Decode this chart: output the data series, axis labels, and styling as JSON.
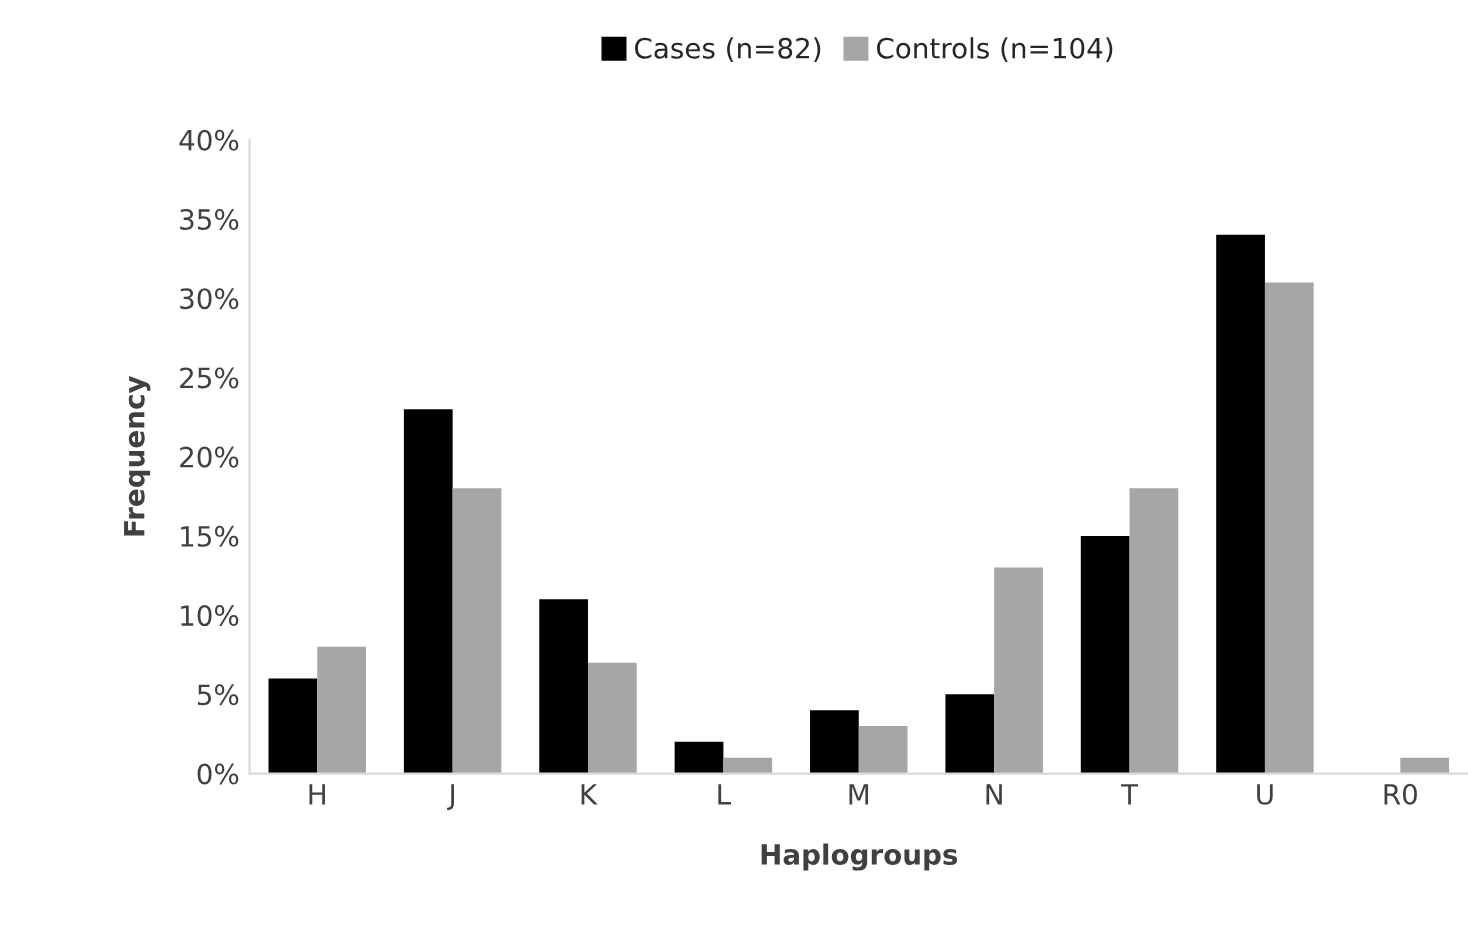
{
  "chart_data": {
    "type": "bar",
    "xlabel": "Haplogroups",
    "ylabel": "Frequency",
    "categories": [
      "H",
      "J",
      "K",
      "L",
      "M",
      "N",
      "T",
      "U",
      "R0"
    ],
    "series": [
      {
        "name": "Cases (n=82)",
        "color": "#000000",
        "values": [
          6,
          23,
          11,
          2,
          4,
          5,
          15,
          34,
          0
        ]
      },
      {
        "name": "Controls (n=104)",
        "color": "#a6a6a6",
        "values": [
          8,
          18,
          7,
          1,
          3,
          13,
          18,
          31,
          1
        ]
      }
    ],
    "ylim": [
      0,
      40
    ],
    "yticks": [
      {
        "value": 0,
        "label": "0%"
      },
      {
        "value": 5,
        "label": "5%"
      },
      {
        "value": 10,
        "label": "10%"
      },
      {
        "value": 15,
        "label": "15%"
      },
      {
        "value": 20,
        "label": "20%"
      },
      {
        "value": 25,
        "label": "25%"
      },
      {
        "value": 30,
        "label": "30%"
      },
      {
        "value": 35,
        "label": "35%"
      },
      {
        "value": 40,
        "label": "40%"
      }
    ],
    "grid": false,
    "legend": "top"
  }
}
